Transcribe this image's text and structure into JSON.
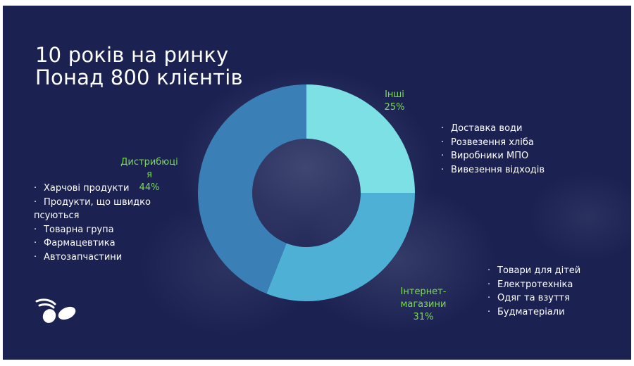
{
  "title": {
    "line1": "10 років на ринку",
    "line2": "Понад 800 клієнтів"
  },
  "chart_data": {
    "type": "pie",
    "categories": [
      "Інші",
      "Інтернет-магазини",
      "Дистрибюція"
    ],
    "values": [
      25,
      31,
      44
    ],
    "colors": [
      "#7de0e4",
      "#4fb0d6",
      "#3a80b6"
    ],
    "data_labels": [
      {
        "name": "Інші",
        "value": "25%"
      },
      {
        "name": "Інтернет-магазини",
        "value": "31%"
      },
      {
        "name": "Дистрибюція",
        "value": "44%"
      }
    ]
  },
  "segments": {
    "other": {
      "name": "Інші",
      "value": "25%",
      "items": [
        "Доставка води",
        "Розвезення хліба",
        "Виробники МПО",
        "Вивезення відходів"
      ]
    },
    "internet": {
      "name_line1": "Інтернет-",
      "name_line2": "магазини",
      "value": "31%",
      "items": [
        "Товари для дітей",
        "Електротехніка",
        "Одяг та взуття",
        "Будматеріали"
      ]
    },
    "distribution": {
      "name_line1": "Дистрибюці",
      "name_line2": "я",
      "value": "44%",
      "items": [
        "Харчові продукти",
        "Продукти, що швидко",
        "псуються",
        "Товарна група",
        "Фармацевтика",
        "Автозапчастини"
      ]
    }
  },
  "colors": {
    "background": "#1b2252",
    "label_accent": "#7ed957",
    "text": "#ffffff"
  }
}
